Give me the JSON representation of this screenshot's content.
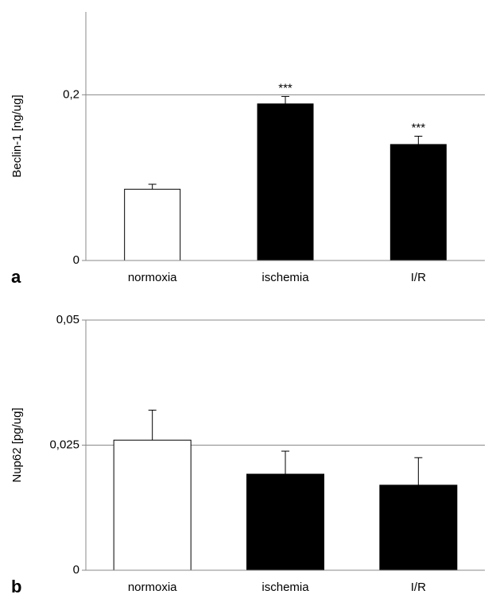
{
  "chart_data": [
    {
      "type": "bar",
      "panel_label": "a",
      "ylabel": "Beclin-1 [ng/ug]",
      "categories": [
        "normoxia",
        "ischemia",
        "I/R"
      ],
      "values": [
        0.086,
        0.189,
        0.14
      ],
      "errors": [
        0.006,
        0.009,
        0.01
      ],
      "colors": [
        "#ffffff",
        "#000000",
        "#000000"
      ],
      "annotations": [
        null,
        "***",
        "***"
      ],
      "ylim": [
        0,
        0.3
      ],
      "yticks": [
        0,
        {
          "value": 0.2,
          "label": "0,2"
        }
      ],
      "grid": true
    },
    {
      "type": "bar",
      "panel_label": "b",
      "ylabel": "Nup62 [pg/ug]",
      "categories": [
        "normoxia",
        "ischemia",
        "I/R"
      ],
      "values": [
        0.026,
        0.0192,
        0.017
      ],
      "errors": [
        0.006,
        0.0046,
        0.0055
      ],
      "colors": [
        "#ffffff",
        "#000000",
        "#000000"
      ],
      "ylim": [
        0,
        0.05
      ],
      "yticks": [
        0,
        {
          "value": 0.025,
          "label": "0,025"
        },
        {
          "value": 0.05,
          "label": "0,05"
        }
      ],
      "grid": true
    }
  ]
}
